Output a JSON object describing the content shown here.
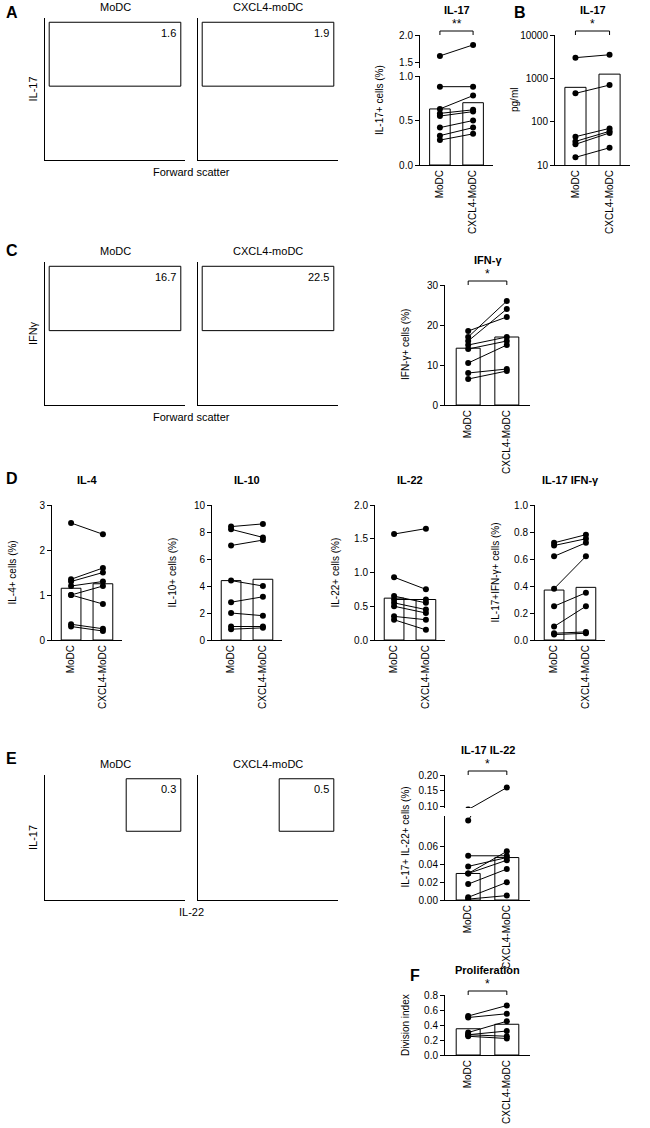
{
  "chart_data": [
    {
      "panel": "A",
      "type": "gate",
      "title": "MoDC",
      "y_label": "IL-17",
      "x_label": "Forward scatter",
      "gate_value": 1.6,
      "tick_labels": false
    },
    {
      "type": "gate",
      "title": "CXCL4-moDC",
      "gate_value": 1.9,
      "tick_labels": false
    },
    {
      "type": "bar",
      "title": "IL-17",
      "y_label": "IL-17+ cells (%)",
      "categories": [
        "MoDC",
        "CXCL4-MoDC"
      ],
      "values": [
        0.63,
        0.7
      ],
      "color": "#ffffff",
      "paired_values": [
        [
          1.62,
          1.82
        ],
        [
          0.88,
          0.88
        ],
        [
          0.63,
          0.78
        ],
        [
          0.58,
          0.62
        ],
        [
          0.55,
          0.6
        ],
        [
          0.42,
          0.5
        ],
        [
          0.33,
          0.42
        ],
        [
          0.28,
          0.35
        ]
      ],
      "ylim": [
        0,
        1.0
      ],
      "yticks": [
        {
          "value": 0,
          "label": "0.0"
        },
        0.5,
        {
          "value": 1,
          "label": "1.0"
        }
      ],
      "y2lim": [
        1.4,
        2.0
      ],
      "y2ticks": [
        1.5,
        {
          "value": 2,
          "label": "2.0"
        }
      ],
      "significance": "**"
    },
    {
      "panel": "B",
      "type": "bar",
      "title": "IL-17",
      "y_label": "pg/ml",
      "log": "y",
      "categories": [
        "MoDC",
        "CXCL4-MoDC"
      ],
      "values": [
        620,
        1250
      ],
      "color": "#ffffff",
      "paired_values": [
        [
          3000,
          3500
        ],
        [
          450,
          700
        ],
        [
          45,
          70
        ],
        [
          35,
          60
        ],
        [
          30,
          55
        ],
        [
          15,
          25
        ]
      ],
      "ylim": [
        10,
        10000
      ],
      "yticks": [
        10,
        100,
        1000,
        10000
      ],
      "significance": "*"
    },
    {
      "panel": "C",
      "type": "gate",
      "title": "MoDC",
      "y_label": "IFNγ",
      "x_label": "Forward scatter",
      "gate_value": 16.7,
      "tick_labels": false
    },
    {
      "type": "gate",
      "title": "CXCL4-moDC",
      "gate_value": 22.5,
      "tick_labels": false
    },
    {
      "type": "bar",
      "title": "IFN-γ",
      "y_label": "IFN-γ+ cells (%)",
      "categories": [
        "MoDC",
        "CXCL4-MoDC"
      ],
      "values": [
        14.2,
        17.0
      ],
      "color": "#ffffff",
      "paired_values": [
        [
          18.5,
          22
        ],
        [
          17,
          26
        ],
        [
          16,
          24
        ],
        [
          15,
          17
        ],
        [
          14,
          16
        ],
        [
          10.5,
          15
        ],
        [
          8,
          9
        ],
        [
          6.5,
          8.5
        ]
      ],
      "ylim": [
        0,
        30
      ],
      "yticks": [
        0,
        10,
        20,
        30
      ],
      "significance": "*"
    },
    {
      "panel": "D",
      "type": "bar",
      "title": "IL-4",
      "y_label": "IL-4+ cells (%)",
      "categories": [
        "MoDC",
        "CXCL4-MoDC"
      ],
      "values": [
        1.15,
        1.25
      ],
      "color": "#ffffff",
      "paired_values": [
        [
          2.6,
          2.35
        ],
        [
          1.35,
          1.6
        ],
        [
          1.3,
          1.5
        ],
        [
          1.2,
          1.3
        ],
        [
          1.0,
          1.2
        ],
        [
          1.0,
          0.8
        ],
        [
          0.35,
          0.25
        ],
        [
          0.3,
          0.2
        ]
      ],
      "ylim": [
        0,
        3
      ],
      "yticks": [
        0,
        1,
        2,
        3
      ]
    },
    {
      "type": "bar",
      "title": "IL-10",
      "y_label": "IL-10+ cells (%)",
      "categories": [
        "MoDC",
        "CXCL4-MoDC"
      ],
      "values": [
        4.4,
        4.5
      ],
      "color": "#ffffff",
      "paired_values": [
        [
          8.4,
          8.6
        ],
        [
          8.2,
          7.6
        ],
        [
          7.0,
          7.4
        ],
        [
          4.4,
          4.0
        ],
        [
          2.8,
          3.2
        ],
        [
          2.0,
          1.8
        ],
        [
          1.0,
          1.0
        ],
        [
          0.8,
          0.9
        ]
      ],
      "ylim": [
        0,
        10
      ],
      "yticks": [
        0,
        2,
        4,
        6,
        8,
        10
      ]
    },
    {
      "type": "bar",
      "title": "IL-22",
      "y_label": "IL-22+ cells (%)",
      "categories": [
        "MoDC",
        "CXCL4-MoDC"
      ],
      "values": [
        0.62,
        0.6
      ],
      "color": "#ffffff",
      "paired_values": [
        [
          1.57,
          1.65
        ],
        [
          0.93,
          0.75
        ],
        [
          0.65,
          0.55
        ],
        [
          0.6,
          0.6
        ],
        [
          0.55,
          0.45
        ],
        [
          0.5,
          0.4
        ],
        [
          0.35,
          0.3
        ],
        [
          0.3,
          0.15
        ]
      ],
      "ylim": [
        0,
        2
      ],
      "yticks": [
        {
          "value": 0,
          "label": "0.0"
        },
        0.5,
        {
          "value": 1,
          "label": "1.0"
        },
        1.5,
        {
          "value": 2,
          "label": "2.0"
        }
      ]
    },
    {
      "type": "bar",
      "title": "IL-17 IFN-γ",
      "y_label": "IL-17+IFN-γ+ cells (%)",
      "categories": [
        "MoDC",
        "CXCL4-MoDC"
      ],
      "values": [
        0.37,
        0.39
      ],
      "color": "#ffffff",
      "paired_values": [
        [
          0.72,
          0.78
        ],
        [
          0.7,
          0.75
        ],
        [
          0.62,
          0.72
        ],
        [
          0.38,
          0.62
        ],
        [
          0.25,
          0.35
        ],
        [
          0.1,
          0.25
        ],
        [
          0.05,
          0.06
        ],
        [
          0.04,
          0.05
        ]
      ],
      "ylim": [
        0,
        1
      ],
      "yticks": [
        {
          "value": 0,
          "label": "0.0"
        },
        0.2,
        0.4,
        0.6,
        0.8,
        {
          "value": 1,
          "label": "1.0"
        }
      ]
    },
    {
      "panel": "E",
      "type": "quadrant",
      "title": "MoDC",
      "y_label": "IL-17",
      "x_label": "IL-22",
      "gate_value": 0.3,
      "tick_labels": false
    },
    {
      "type": "quadrant",
      "title": "CXCL4-moDC",
      "gate_value": 0.5,
      "tick_labels": false
    },
    {
      "type": "bar",
      "title": "IL-17 IL-22",
      "y_label": "IL-17+ IL-22+ cells (%)",
      "categories": [
        "MoDC",
        "CXCL4-MoDC"
      ],
      "values": [
        0.03,
        0.048
      ],
      "color": "#ffffff",
      "paired_values": [
        [
          0.09,
          0.16
        ],
        [
          0.05,
          0.05
        ],
        [
          0.038,
          0.048
        ],
        [
          0.03,
          0.045
        ],
        [
          0.03,
          0.055
        ],
        [
          0.018,
          0.035
        ],
        [
          0.003,
          0.02
        ],
        [
          0.001,
          0.005
        ]
      ],
      "ylim": [
        0,
        0.095
      ],
      "yticks": [
        {
          "value": 0,
          "label": "0.00"
        },
        {
          "value": 0.02,
          "label": "0.02"
        },
        {
          "value": 0.04,
          "label": "0.04"
        },
        {
          "value": 0.06,
          "label": "0.06"
        }
      ],
      "y2lim": [
        0.095,
        0.2
      ],
      "y2ticks": [
        {
          "value": 0.1,
          "label": "0.10"
        },
        0.15,
        {
          "value": 0.2,
          "label": "0.20"
        }
      ],
      "significance": "*"
    },
    {
      "panel": "F",
      "type": "bar",
      "title": "Proliferation",
      "y_label": "Division index",
      "categories": [
        "MoDC",
        "CXCL4-MoDC"
      ],
      "values": [
        0.35,
        0.41
      ],
      "color": "#ffffff",
      "paired_values": [
        [
          0.52,
          0.66
        ],
        [
          0.5,
          0.55
        ],
        [
          0.3,
          0.45
        ],
        [
          0.27,
          0.32
        ],
        [
          0.27,
          0.25
        ],
        [
          0.25,
          0.22
        ]
      ],
      "ylim": [
        0,
        0.8
      ],
      "yticks": [
        {
          "value": 0,
          "label": "0.0"
        },
        0.2,
        0.4,
        0.6,
        0.8
      ],
      "significance": "*"
    }
  ]
}
